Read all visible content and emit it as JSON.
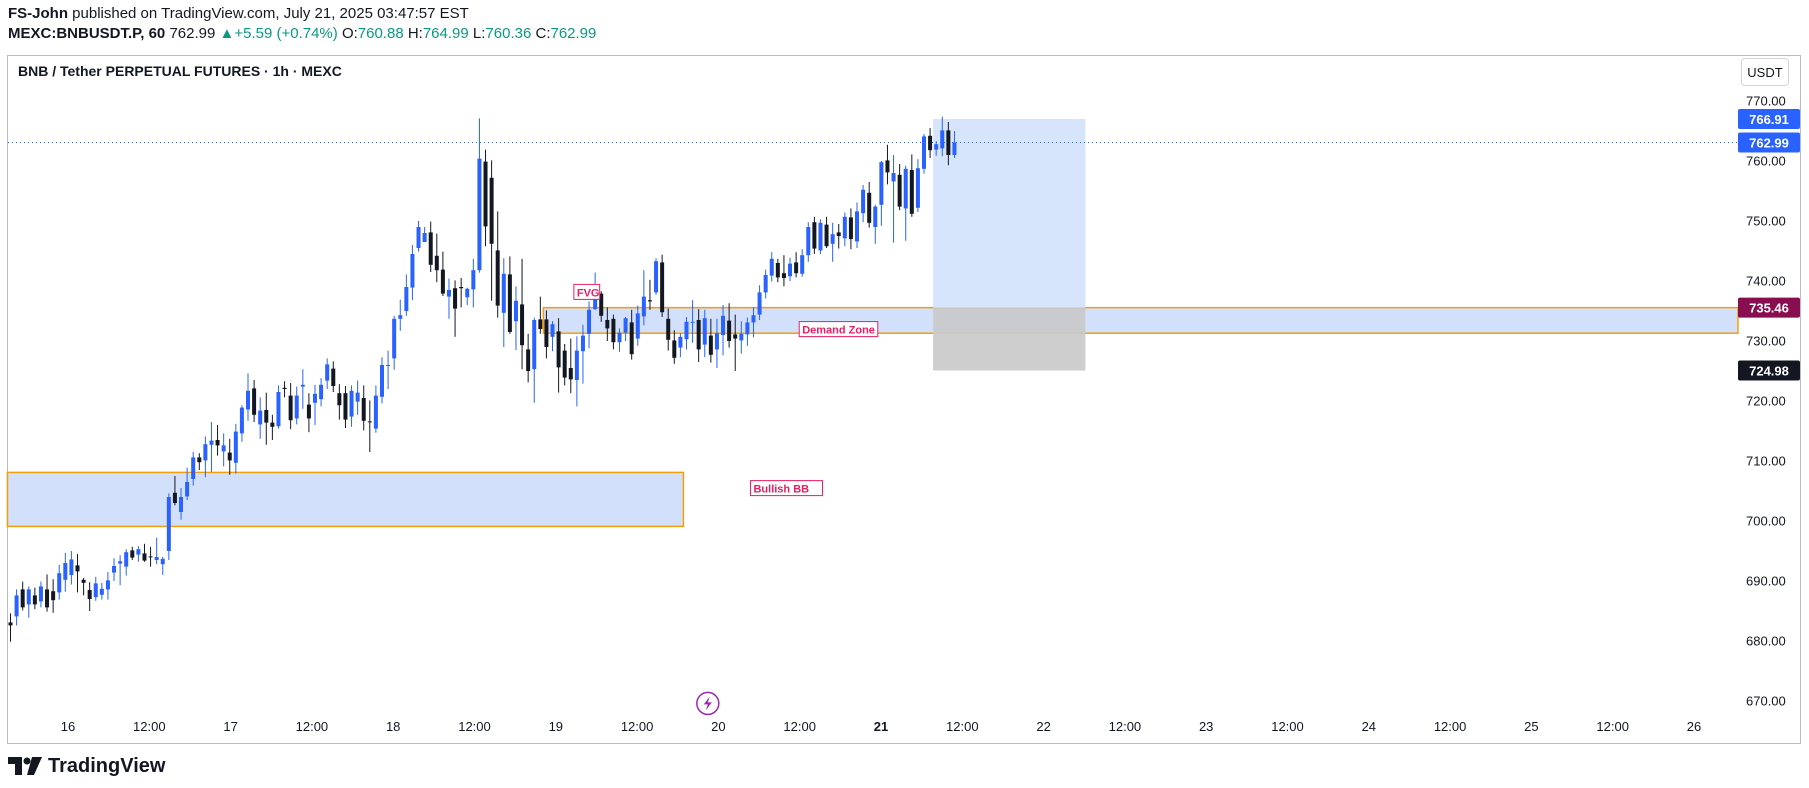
{
  "header": {
    "author": "FS-John",
    "published_text": "published on TradingView.com, July 21, 2025 03:47:57 EST",
    "symbol": "MEXC:BNBUSDT.P, 60",
    "last": "762.99",
    "change": "+5.59 (+0.74%)",
    "o_label": "O:",
    "o_value": "760.88",
    "h_label": "H:",
    "h_value": "764.99",
    "l_label": "L:",
    "l_value": "760.36",
    "c_label": "C:",
    "c_value": "762.99"
  },
  "chart_title": "BNB / Tether PERPETUAL FUTURES · 1h · MEXC",
  "currency_button": "USDT",
  "footer": {
    "brand": "TradingView",
    "logo_icon": "tradingview-logo-icon"
  },
  "colors": {
    "bull": "#2962ff",
    "bear": "#131722",
    "zone_fill": "#d3e0fb",
    "zone_border": "#f59e0b",
    "target_fill": "#d6e4fc",
    "stop_fill": "#c9c9c9",
    "annotation_text": "#e91e63",
    "price_line": "#2962ff"
  },
  "chart_data": {
    "type": "candlestick",
    "title": "BNB / Tether PERPETUAL FUTURES · 1h · MEXC",
    "ylim": [
      665,
      775
    ],
    "y_ticks": [
      "770.00",
      "760.00",
      "750.00",
      "740.00",
      "730.00",
      "720.00",
      "710.00",
      "700.00",
      "690.00",
      "680.00",
      "670.00"
    ],
    "x_ticks": [
      "16",
      "12:00",
      "17",
      "12:00",
      "18",
      "12:00",
      "19",
      "12:00",
      "20",
      "12:00",
      "21",
      "12:00",
      "22",
      "12:00",
      "23",
      "12:00",
      "24",
      "12:00",
      "25",
      "12:00",
      "26"
    ],
    "x_ticks_bold": [
      "21"
    ],
    "bar_count": 269,
    "session_end_index": 115,
    "current_price": 762.99,
    "price_labels": [
      {
        "text": "766.91",
        "price": 766.91,
        "style": "blue"
      },
      {
        "text": "762.99",
        "price": 762.99,
        "style": "blue"
      },
      {
        "text": "735.46",
        "price": 735.46,
        "style": "maroon"
      },
      {
        "text": "724.98",
        "price": 724.98,
        "style": "black"
      }
    ],
    "zones": [
      {
        "name": "Bullish BB",
        "label": "Bullish BB",
        "top": 708,
        "bottom": 699,
        "x_start": -0.5,
        "x_end": 110.5,
        "label_index": 122,
        "label_price": 705.3
      },
      {
        "name": "Demand Zone",
        "label": "Demand Zone",
        "top": 735.46,
        "bottom": 731.2,
        "x_start": 87.5,
        "x_end": 268.5,
        "label_index": 130,
        "label_price": 731.8
      },
      {
        "name": "FVG",
        "label": "FVG",
        "top": 735.46,
        "bottom": 731.2,
        "x_start": 87.5,
        "x_end": 88.3,
        "label_index": 93,
        "label_price": 738
      }
    ],
    "position": {
      "type": "long",
      "entry": 735.46,
      "target": 766.91,
      "stop": 724.98,
      "x_start": 151.5,
      "x_end": 176.5
    },
    "events": [
      {
        "name": "lightning",
        "index": 114.5,
        "price": 669.5
      }
    ],
    "candles": [
      [
        683.0,
        684.5,
        679.8,
        682.5
      ],
      [
        684.0,
        688.5,
        682.5,
        687.5
      ],
      [
        688.5,
        689.8,
        685.0,
        685.5
      ],
      [
        686.0,
        689.0,
        683.8,
        688.5
      ],
      [
        687.5,
        688.8,
        685.2,
        686.0
      ],
      [
        686.5,
        689.8,
        685.5,
        689.0
      ],
      [
        688.5,
        691.0,
        684.8,
        685.5
      ],
      [
        688.2,
        690.2,
        684.6,
        686.7
      ],
      [
        688.0,
        692.6,
        686.8,
        691.2
      ],
      [
        690.1,
        694.6,
        688.1,
        692.9
      ],
      [
        690.9,
        694.9,
        689.3,
        693.5
      ],
      [
        692.5,
        694.4,
        688.0,
        691.5
      ],
      [
        690.1,
        690.4,
        687.5,
        689.6
      ],
      [
        688.4,
        689.7,
        684.9,
        686.9
      ],
      [
        687.2,
        690.6,
        686.6,
        689.5
      ],
      [
        687.6,
        689.6,
        686.8,
        688.6
      ],
      [
        688.5,
        691.4,
        686.8,
        690.0
      ],
      [
        691.3,
        693.7,
        689.9,
        692.4
      ],
      [
        692.8,
        694.2,
        689.2,
        693.2
      ],
      [
        692.3,
        695.2,
        690.8,
        694.7
      ],
      [
        695.0,
        695.6,
        693.4,
        693.8
      ],
      [
        694.3,
        695.7,
        693.1,
        695.2
      ],
      [
        694.5,
        696.1,
        693.1,
        693.3
      ],
      [
        694.0,
        695.6,
        692.3,
        693.9
      ],
      [
        693.4,
        697.1,
        692.7,
        693.9
      ],
      [
        692.7,
        693.9,
        690.9,
        693.6
      ],
      [
        694.9,
        704.5,
        693.4,
        703.9
      ],
      [
        704.6,
        707.4,
        702.5,
        702.9
      ],
      [
        701.4,
        705.4,
        700.1,
        703.9
      ],
      [
        704.0,
        708.8,
        703.4,
        706.4
      ],
      [
        706.9,
        711.4,
        705.8,
        710.5
      ],
      [
        710.5,
        711.2,
        708.4,
        709.7
      ],
      [
        710.0,
        714.0,
        707.2,
        712.7
      ],
      [
        712.6,
        716.4,
        708.1,
        713.3
      ],
      [
        713.4,
        715.9,
        710.8,
        712.5
      ],
      [
        711.5,
        714.5,
        709.0,
        712.5
      ],
      [
        711.3,
        713.6,
        707.6,
        710.0
      ],
      [
        709.6,
        716.1,
        707.8,
        714.8
      ],
      [
        714.5,
        719.2,
        713.1,
        718.8
      ],
      [
        718.5,
        724.5,
        716.6,
        721.6
      ],
      [
        722.0,
        723.4,
        716.4,
        717.6
      ],
      [
        716.0,
        720.5,
        713.6,
        718.3
      ],
      [
        718.4,
        721.3,
        712.6,
        716.3
      ],
      [
        716.3,
        717.6,
        713.4,
        715.6
      ],
      [
        715.7,
        722.5,
        715.3,
        721.4
      ],
      [
        722.1,
        723.2,
        720.5,
        721.9
      ],
      [
        720.8,
        722.9,
        715.2,
        716.7
      ],
      [
        717.0,
        722.3,
        716.0,
        720.8
      ],
      [
        722.3,
        725.2,
        718.6,
        722.6
      ],
      [
        719.3,
        721.2,
        714.7,
        717.0
      ],
      [
        719.6,
        722.6,
        715.9,
        721.1
      ],
      [
        720.2,
        723.7,
        719.0,
        722.6
      ],
      [
        723.3,
        727.0,
        721.9,
        726.0
      ],
      [
        725.3,
        726.5,
        721.4,
        722.4
      ],
      [
        721.2,
        722.7,
        716.8,
        719.2
      ],
      [
        721.2,
        722.4,
        715.4,
        716.8
      ],
      [
        717.3,
        722.5,
        715.6,
        721.6
      ],
      [
        719.8,
        723.3,
        717.6,
        721.3
      ],
      [
        720.4,
        722.5,
        715.0,
        716.6
      ],
      [
        716.5,
        720.0,
        711.4,
        716.4
      ],
      [
        715.3,
        722.5,
        714.6,
        720.8
      ],
      [
        720.6,
        727.2,
        719.5,
        725.9
      ],
      [
        725.9,
        728.3,
        721.9,
        725.9
      ],
      [
        727.0,
        734.1,
        725.1,
        733.6
      ],
      [
        733.6,
        736.8,
        731.6,
        734.2
      ],
      [
        734.9,
        741.0,
        734.1,
        738.9
      ],
      [
        738.8,
        745.9,
        736.7,
        744.4
      ],
      [
        745.4,
        749.9,
        744.8,
        748.9
      ],
      [
        746.4,
        748.9,
        746.4,
        747.9
      ],
      [
        748.0,
        749.8,
        741.4,
        742.6
      ],
      [
        744.1,
        747.8,
        739.7,
        741.7
      ],
      [
        741.8,
        744.8,
        737.4,
        737.8
      ],
      [
        737.3,
        740.3,
        733.6,
        738.4
      ],
      [
        738.7,
        740.0,
        730.6,
        735.3
      ],
      [
        738.9,
        740.4,
        735.5,
        738.7
      ],
      [
        737.2,
        738.8,
        735.9,
        738.6
      ],
      [
        738.5,
        743.6,
        735.5,
        741.7
      ],
      [
        741.7,
        767.0,
        741.3,
        760.3
      ],
      [
        759.8,
        761.8,
        745.7,
        749.0
      ],
      [
        757.1,
        760.0,
        736.6,
        746.1
      ],
      [
        745.0,
        751.5,
        733.8,
        735.8
      ],
      [
        734.6,
        743.7,
        728.9,
        741.1
      ],
      [
        741.0,
        744.0,
        731.1,
        731.4
      ],
      [
        733.2,
        739.0,
        728.4,
        736.6
      ],
      [
        736.0,
        743.6,
        725.2,
        729.2
      ],
      [
        728.5,
        731.1,
        723.0,
        724.9
      ],
      [
        725.2,
        733.8,
        719.6,
        733.4
      ],
      [
        733.5,
        737.3,
        731.1,
        731.9
      ],
      [
        733.5,
        735.0,
        727.0,
        728.9
      ],
      [
        730.6,
        733.2,
        728.2,
        732.7
      ],
      [
        731.5,
        733.7,
        721.3,
        725.5
      ],
      [
        728.3,
        729.4,
        722.5,
        723.8
      ],
      [
        725.4,
        730.3,
        721.2,
        723.5
      ],
      [
        723.4,
        730.7,
        719.0,
        728.3
      ],
      [
        728.2,
        732.6,
        722.8,
        730.8
      ],
      [
        731.1,
        736.5,
        728.7,
        735.1
      ],
      [
        735.2,
        741.3,
        735.1,
        736.9
      ],
      [
        737.8,
        738.2,
        733.1,
        734.1
      ],
      [
        733.4,
        735.5,
        729.9,
        732.0
      ],
      [
        733.6,
        734.3,
        728.5,
        729.7
      ],
      [
        729.7,
        732.0,
        728.1,
        731.3
      ],
      [
        731.3,
        733.9,
        729.9,
        733.7
      ],
      [
        733.0,
        735.1,
        726.8,
        727.7
      ],
      [
        730.3,
        735.8,
        729.1,
        734.5
      ],
      [
        734.0,
        741.7,
        732.5,
        737.3
      ],
      [
        736.7,
        740.1,
        735.1,
        736.5
      ],
      [
        738.0,
        743.7,
        737.6,
        743.2
      ],
      [
        743.0,
        744.3,
        733.9,
        734.7
      ],
      [
        733.6,
        735.3,
        728.3,
        730.1
      ],
      [
        730.0,
        731.7,
        726.1,
        727.1
      ],
      [
        728.8,
        731.2,
        727.2,
        730.6
      ],
      [
        730.2,
        733.9,
        728.5,
        733.1
      ],
      [
        733.1,
        736.7,
        729.6,
        733.1
      ],
      [
        733.4,
        735.2,
        726.4,
        728.5
      ],
      [
        729.3,
        735.1,
        727.2,
        733.7
      ],
      [
        730.8,
        733.6,
        726.3,
        727.6
      ],
      [
        728.5,
        733.6,
        725.4,
        731.2
      ],
      [
        730.9,
        735.9,
        727.5,
        734.1
      ],
      [
        733.3,
        736.2,
        728.8,
        729.9
      ],
      [
        731.0,
        734.3,
        724.9,
        730.3
      ],
      [
        730.0,
        733.2,
        727.8,
        731.1
      ],
      [
        731.0,
        733.8,
        729.1,
        733.0
      ],
      [
        733.0,
        735.5,
        730.5,
        734.2
      ],
      [
        734.3,
        739.2,
        733.4,
        738.0
      ],
      [
        738.0,
        741.8,
        737.0,
        740.9
      ],
      [
        740.8,
        744.7,
        739.8,
        743.6
      ],
      [
        742.9,
        743.6,
        739.7,
        740.5
      ],
      [
        741.2,
        744.2,
        739.0,
        740.4
      ],
      [
        740.7,
        743.8,
        739.9,
        742.8
      ],
      [
        743.0,
        744.7,
        740.5,
        741.2
      ],
      [
        741.1,
        745.2,
        740.6,
        744.2
      ],
      [
        744.2,
        749.7,
        743.1,
        748.9
      ],
      [
        749.7,
        750.6,
        744.4,
        745.3
      ],
      [
        745.0,
        750.2,
        744.4,
        749.6
      ],
      [
        749.3,
        750.6,
        745.4,
        745.7
      ],
      [
        746.1,
        749.6,
        743.1,
        747.7
      ],
      [
        748.0,
        749.4,
        745.3,
        747.4
      ],
      [
        747.0,
        751.3,
        745.7,
        750.6
      ],
      [
        750.5,
        752.0,
        745.2,
        746.9
      ],
      [
        746.5,
        753.0,
        745.4,
        751.5
      ],
      [
        751.2,
        755.9,
        749.7,
        755.1
      ],
      [
        754.6,
        756.4,
        748.8,
        749.6
      ],
      [
        748.9,
        752.6,
        746.1,
        752.3
      ],
      [
        752.6,
        759.9,
        749.1,
        759.7
      ],
      [
        760.0,
        762.6,
        756.0,
        758.0
      ],
      [
        756.5,
        760.9,
        746.3,
        757.9
      ],
      [
        757.6,
        759.4,
        751.7,
        752.3
      ],
      [
        752.0,
        759.1,
        746.6,
        758.6
      ],
      [
        758.4,
        761.0,
        750.6,
        751.1
      ],
      [
        752.1,
        760.2,
        751.4,
        758.7
      ],
      [
        758.6,
        764.4,
        757.8,
        764.0
      ],
      [
        764.1,
        765.4,
        760.4,
        761.7
      ],
      [
        761.8,
        763.2,
        760.8,
        762.7
      ],
      [
        762.0,
        767.3,
        760.7,
        765.0
      ],
      [
        765.0,
        766.4,
        759.2,
        760.9
      ],
      [
        760.9,
        764.9,
        760.4,
        763.0
      ]
    ]
  }
}
